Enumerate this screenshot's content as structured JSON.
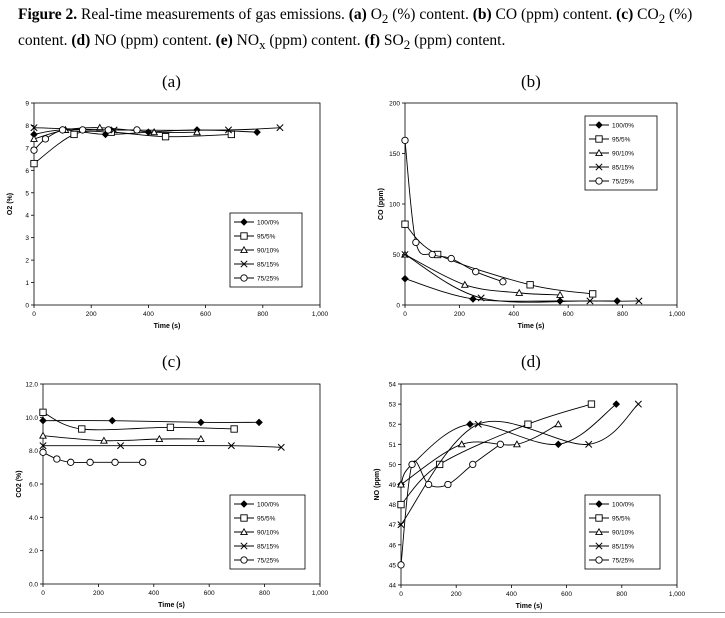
{
  "caption": {
    "figure_label": "Figure 2.",
    "text_html": "Real-time measurements of gas emissions. <b>(a)</b> O<sub>2</sub> (%) content. <b>(b)</b> CO (ppm) content. <b>(c)</b> CO<sub>2</sub> (%) content. <b>(d)</b> NO (ppm) content. <b>(e)</b> NO<sub>x</sub> (ppm) content. <b>(f)</b> SO<sub>2</sub> (ppm) content."
  },
  "legend_labels": [
    "100/0%",
    "95/5%",
    "90/10%",
    "85/15%",
    "75/25%"
  ],
  "chart_data": [
    {
      "panel": "(a)",
      "type": "line",
      "xlabel": "Time (s)",
      "ylabel": "O2 (%)",
      "xlim": [
        0,
        1000
      ],
      "ylim": [
        0,
        9
      ],
      "xticks": [
        "0",
        "200",
        "400",
        "600",
        "800",
        "1,000"
      ],
      "yticks": [
        "0",
        "1",
        "2",
        "3",
        "4",
        "5",
        "6",
        "7",
        "8",
        "9"
      ],
      "legend_position": "right",
      "series": [
        {
          "name": "100/0%",
          "marker": "diamond",
          "x": [
            0,
            100,
            250,
            400,
            570,
            780
          ],
          "y": [
            7.6,
            7.8,
            7.6,
            7.7,
            7.8,
            7.7
          ]
        },
        {
          "name": "95/5%",
          "marker": "square",
          "x": [
            0,
            140,
            270,
            460,
            690
          ],
          "y": [
            6.3,
            7.6,
            7.7,
            7.5,
            7.6
          ]
        },
        {
          "name": "90/10%",
          "marker": "triangle",
          "x": [
            0,
            110,
            230,
            420,
            570
          ],
          "y": [
            7.4,
            7.8,
            7.9,
            7.7,
            7.7
          ]
        },
        {
          "name": "85/15%",
          "marker": "x",
          "x": [
            0,
            280,
            680,
            860
          ],
          "y": [
            7.9,
            7.8,
            7.8,
            7.9
          ]
        },
        {
          "name": "75/25%",
          "marker": "circle",
          "x": [
            0,
            40,
            100,
            170,
            260,
            360
          ],
          "y": [
            6.9,
            7.4,
            7.8,
            7.8,
            7.8,
            7.8
          ]
        }
      ]
    },
    {
      "panel": "(b)",
      "type": "line",
      "xlabel": "Time (s)",
      "ylabel": "CO (ppm)",
      "xlim": [
        0,
        1000
      ],
      "ylim": [
        0,
        200
      ],
      "xticks": [
        "0",
        "200",
        "400",
        "600",
        "800",
        "1,000"
      ],
      "yticks": [
        "0",
        "50",
        "100",
        "150",
        "200"
      ],
      "legend_position": "top-right",
      "series": [
        {
          "name": "100/0%",
          "marker": "diamond",
          "x": [
            0,
            250,
            570,
            780
          ],
          "y": [
            26,
            6,
            4,
            4
          ]
        },
        {
          "name": "95/5%",
          "marker": "square",
          "x": [
            0,
            120,
            460,
            690
          ],
          "y": [
            80,
            50,
            20,
            11
          ]
        },
        {
          "name": "90/10%",
          "marker": "triangle",
          "x": [
            0,
            220,
            420,
            570
          ],
          "y": [
            50,
            20,
            12,
            10
          ]
        },
        {
          "name": "85/15%",
          "marker": "x",
          "x": [
            0,
            280,
            680,
            860
          ],
          "y": [
            50,
            7,
            4,
            4
          ]
        },
        {
          "name": "75/25%",
          "marker": "circle",
          "x": [
            0,
            40,
            100,
            170,
            260,
            360
          ],
          "y": [
            163,
            62,
            50,
            46,
            33,
            23
          ]
        }
      ]
    },
    {
      "panel": "(c)",
      "type": "line",
      "xlabel": "Time (s)",
      "ylabel": "CO2 (%)",
      "xlim": [
        0,
        1000
      ],
      "ylim": [
        0,
        12
      ],
      "xticks": [
        "0",
        "200",
        "400",
        "600",
        "800",
        "1,000"
      ],
      "yticks": [
        "0.0",
        "2.0",
        "4.0",
        "6.0",
        "8.0",
        "10.0",
        "12.0"
      ],
      "legend_position": "bottom-right",
      "series": [
        {
          "name": "100/0%",
          "marker": "diamond",
          "x": [
            0,
            250,
            570,
            780
          ],
          "y": [
            9.8,
            9.8,
            9.7,
            9.7
          ]
        },
        {
          "name": "95/5%",
          "marker": "square",
          "x": [
            0,
            140,
            460,
            690
          ],
          "y": [
            10.3,
            9.3,
            9.4,
            9.3
          ]
        },
        {
          "name": "90/10%",
          "marker": "triangle",
          "x": [
            0,
            220,
            420,
            570
          ],
          "y": [
            8.9,
            8.6,
            8.7,
            8.7
          ]
        },
        {
          "name": "85/15%",
          "marker": "x",
          "x": [
            0,
            280,
            680,
            860
          ],
          "y": [
            8.3,
            8.3,
            8.3,
            8.2
          ]
        },
        {
          "name": "75/25%",
          "marker": "circle",
          "x": [
            0,
            50,
            100,
            170,
            260,
            360
          ],
          "y": [
            7.9,
            7.5,
            7.3,
            7.3,
            7.3,
            7.3
          ]
        }
      ]
    },
    {
      "panel": "(d)",
      "type": "line",
      "xlabel": "Time (s)",
      "ylabel": "NO (ppm)",
      "xlim": [
        0,
        1000
      ],
      "ylim": [
        44,
        54
      ],
      "xticks": [
        "0",
        "200",
        "400",
        "600",
        "800",
        "1,000"
      ],
      "yticks": [
        "44",
        "45",
        "46",
        "47",
        "48",
        "49",
        "50",
        "51",
        "52",
        "53",
        "54"
      ],
      "legend_position": "bottom-right",
      "series": [
        {
          "name": "100/0%",
          "marker": "diamond",
          "x": [
            0,
            40,
            250,
            570,
            780
          ],
          "y": [
            49,
            50,
            52,
            51,
            53
          ]
        },
        {
          "name": "95/5%",
          "marker": "square",
          "x": [
            0,
            140,
            460,
            690
          ],
          "y": [
            48,
            50,
            52,
            53
          ]
        },
        {
          "name": "90/10%",
          "marker": "triangle",
          "x": [
            0,
            220,
            420,
            570
          ],
          "y": [
            49,
            51,
            51,
            52
          ]
        },
        {
          "name": "85/15%",
          "marker": "x",
          "x": [
            0,
            280,
            680,
            860
          ],
          "y": [
            47,
            52,
            51,
            53
          ]
        },
        {
          "name": "75/25%",
          "marker": "circle",
          "x": [
            0,
            40,
            100,
            170,
            260,
            360
          ],
          "y": [
            45,
            50,
            49,
            49,
            50,
            51
          ]
        }
      ]
    }
  ]
}
